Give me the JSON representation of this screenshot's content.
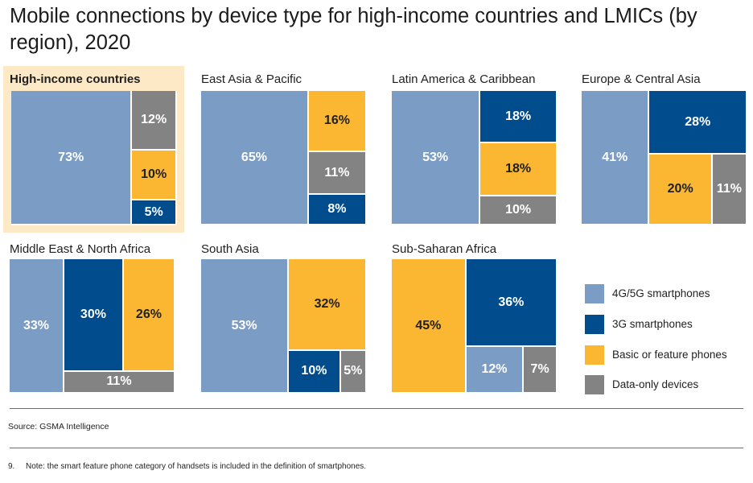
{
  "title": "Mobile connections by device type for high-income countries and LMICs (by region), 2020",
  "colors": {
    "4g5g": "#7b9cc4",
    "3g": "#004c8c",
    "basic": "#fbb732",
    "data_only": "#838383",
    "highlight_bg": "#fde9c6"
  },
  "chart_data": {
    "type": "treemap",
    "title": "Mobile connections by device type for high-income countries and LMICs (by region), 2020",
    "series_names": [
      "4G/5G smartphones",
      "3G smartphones",
      "Basic or feature phones",
      "Data-only devices"
    ],
    "legend_position": "bottom-right",
    "panels": [
      {
        "name": "High-income countries",
        "highlighted": true,
        "values": {
          "4G/5G smartphones": 73,
          "3G smartphones": 5,
          "Basic or feature phones": 10,
          "Data-only devices": 12
        }
      },
      {
        "name": "East Asia & Pacific",
        "highlighted": false,
        "values": {
          "4G/5G smartphones": 65,
          "3G smartphones": 8,
          "Basic or feature phones": 16,
          "Data-only devices": 11
        }
      },
      {
        "name": "Latin America & Caribbean",
        "highlighted": false,
        "values": {
          "4G/5G smartphones": 53,
          "3G smartphones": 18,
          "Basic or feature phones": 18,
          "Data-only devices": 10
        }
      },
      {
        "name": "Europe & Central Asia",
        "highlighted": false,
        "values": {
          "4G/5G smartphones": 41,
          "3G smartphones": 28,
          "Basic or feature phones": 20,
          "Data-only devices": 11
        }
      },
      {
        "name": "Middle East & North Africa",
        "highlighted": false,
        "values": {
          "4G/5G smartphones": 33,
          "3G smartphones": 30,
          "Basic or feature phones": 26,
          "Data-only devices": 11
        }
      },
      {
        "name": "South Asia",
        "highlighted": false,
        "values": {
          "4G/5G smartphones": 53,
          "3G smartphones": 10,
          "Basic or feature phones": 32,
          "Data-only devices": 5
        }
      },
      {
        "name": "Sub-Saharan Africa",
        "highlighted": false,
        "values": {
          "4G/5G smartphones": 12,
          "3G smartphones": 36,
          "Basic or feature phones": 45,
          "Data-only devices": 7
        }
      }
    ]
  },
  "source": "Source: GSMA Intelligence",
  "footnote": {
    "number": "9.",
    "text": "Note: the smart feature phone category of handsets is included in the definition of smartphones."
  }
}
